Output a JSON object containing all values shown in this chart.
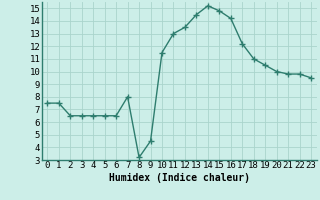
{
  "x": [
    0,
    1,
    2,
    3,
    4,
    5,
    6,
    7,
    8,
    9,
    10,
    11,
    12,
    13,
    14,
    15,
    16,
    17,
    18,
    19,
    20,
    21,
    22,
    23
  ],
  "y": [
    7.5,
    7.5,
    6.5,
    6.5,
    6.5,
    6.5,
    6.5,
    8.0,
    3.2,
    4.5,
    11.5,
    13.0,
    13.5,
    14.5,
    15.2,
    14.8,
    14.2,
    12.2,
    11.0,
    10.5,
    10.0,
    9.8,
    9.8,
    9.5
  ],
  "line_color": "#2e7d6e",
  "marker_color": "#2e7d6e",
  "bg_color": "#cceee8",
  "grid_color": "#aad4cc",
  "xlabel": "Humidex (Indice chaleur)",
  "ylim": [
    3,
    15.5
  ],
  "xlim": [
    -0.5,
    23.5
  ],
  "yticks": [
    3,
    4,
    5,
    6,
    7,
    8,
    9,
    10,
    11,
    12,
    13,
    14,
    15
  ],
  "xticks": [
    0,
    1,
    2,
    3,
    4,
    5,
    6,
    7,
    8,
    9,
    10,
    11,
    12,
    13,
    14,
    15,
    16,
    17,
    18,
    19,
    20,
    21,
    22,
    23
  ],
  "label_fontsize": 7,
  "tick_fontsize": 6.5
}
